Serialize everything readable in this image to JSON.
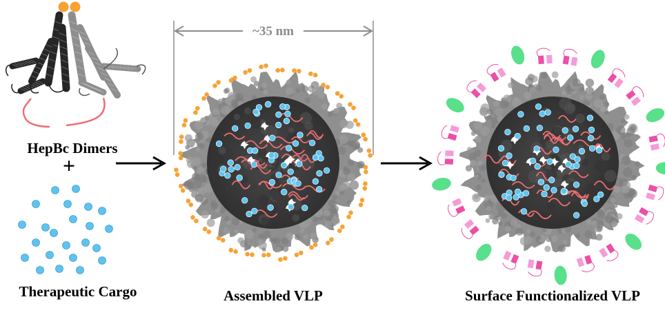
{
  "labels": {
    "dimers": "HepBc Dimers",
    "plus": "+",
    "cargo": "Therapeutic Cargo",
    "assembled": "Assembled VLP",
    "functionalized": "Surface Functionalized VLP",
    "diameter": "~35 nm"
  },
  "colors": {
    "tag_orange": "#f7a234",
    "cargo_blue": "#5ec3ef",
    "linker_red": "#ee6e72",
    "shell_gray": "#8f8f8f",
    "core_dark": "#3d3d3d",
    "protein_dark": "#262626",
    "protein_light": "#8e8e8e",
    "pink_dark": "#ec4fa6",
    "pink_light": "#f59bd7",
    "green": "#58e08a",
    "arrow": "#000000",
    "measure": "#8c8c8c"
  },
  "icons": [
    "right-arrow-icon",
    "right-arrow-icon"
  ]
}
